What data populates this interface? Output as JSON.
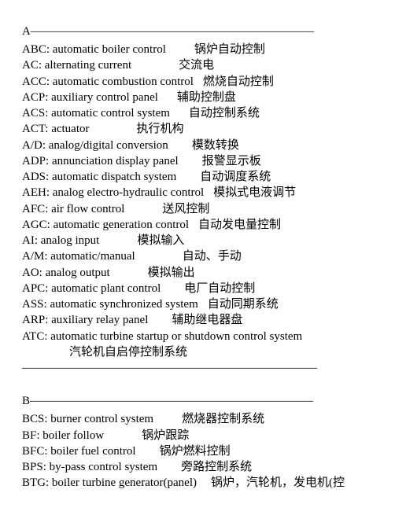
{
  "sections": {
    "A": {
      "header": "A————————————————————————",
      "entries": [
        {
          "abbr": "ABC",
          "full": "automatic boiler control",
          "cn": "锅炉自动控制",
          "gap": 36
        },
        {
          "abbr": "AC",
          "full": "alternating current",
          "cn": "交流电",
          "gap": 60
        },
        {
          "abbr": "ACC",
          "full": "automatic combustion control",
          "cn": "燃烧自动控制",
          "gap": 12
        },
        {
          "abbr": "ACP",
          "full": "auxiliary control panel",
          "cn": "辅助控制盘",
          "gap": 24
        },
        {
          "abbr": "ACS",
          "full": "automatic control system",
          "cn": "自动控制系统",
          "gap": 24
        },
        {
          "abbr": "ACT",
          "full": "actuator",
          "cn": "执行机构",
          "gap": 60
        },
        {
          "abbr": "A/D",
          "full": "analog/digital conversion",
          "cn": "模数转换",
          "gap": 30
        },
        {
          "abbr": "ADP",
          "full": "annunciation display panel",
          "cn": "报警显示板",
          "gap": 30
        },
        {
          "abbr": "ADS",
          "full": "automatic dispatch system",
          "cn": "自动调度系统",
          "gap": 30
        },
        {
          "abbr": "AEH",
          "full": "analog electro-hydraulic control",
          "cn": "模拟式电液调节",
          "gap": 12
        },
        {
          "abbr": "AFC",
          "full": "air flow control",
          "cn": "送风控制",
          "gap": 48
        },
        {
          "abbr": "AGC",
          "full": "automatic generation control",
          "cn": "自动发电量控制",
          "gap": 12
        },
        {
          "abbr": "AI",
          "full": "analog    input",
          "cn": "模拟输入",
          "gap": 48
        },
        {
          "abbr": "A/M",
          "full": "automatic/manual",
          "cn": "自动、手动",
          "gap": 60
        },
        {
          "abbr": "AO",
          "full": "analog output",
          "cn": "模拟输出",
          "gap": 48
        },
        {
          "abbr": "APC",
          "full": "automatic plant control",
          "cn": "电厂自动控制",
          "gap": 30
        },
        {
          "abbr": "ASS",
          "full": "automatic synchronized system",
          "cn": "自动同期系统",
          "gap": 12
        },
        {
          "abbr": "ARP",
          "full": "auxiliary relay panel",
          "cn": "辅助继电器盘",
          "gap": 30
        },
        {
          "abbr": "ATC",
          "full": "automatic turbine startup or shutdown control system",
          "cn": "汽轮机自启停控制系统",
          "multiline": true
        }
      ],
      "trailing_divider": "—————————————————————————"
    },
    "B": {
      "header": "B————————————————————————",
      "entries": [
        {
          "abbr": "BCS",
          "full": "burner control system",
          "cn": "燃烧器控制系统",
          "gap": 36
        },
        {
          "abbr": "BF",
          "full": "boiler follow",
          "cn": "锅炉跟踪",
          "gap": 48
        },
        {
          "abbr": "BFC",
          "full": "boiler fuel control",
          "cn": "锅炉燃料控制",
          "gap": 30
        },
        {
          "abbr": "BPS",
          "full": "by-pass control system",
          "cn": "旁路控制系统",
          "gap": 30
        },
        {
          "abbr": "BTG",
          "full": "boiler turbine generator(panel)",
          "cn": "锅炉，汽轮机，发电机(控",
          "gap": 18
        }
      ]
    }
  }
}
